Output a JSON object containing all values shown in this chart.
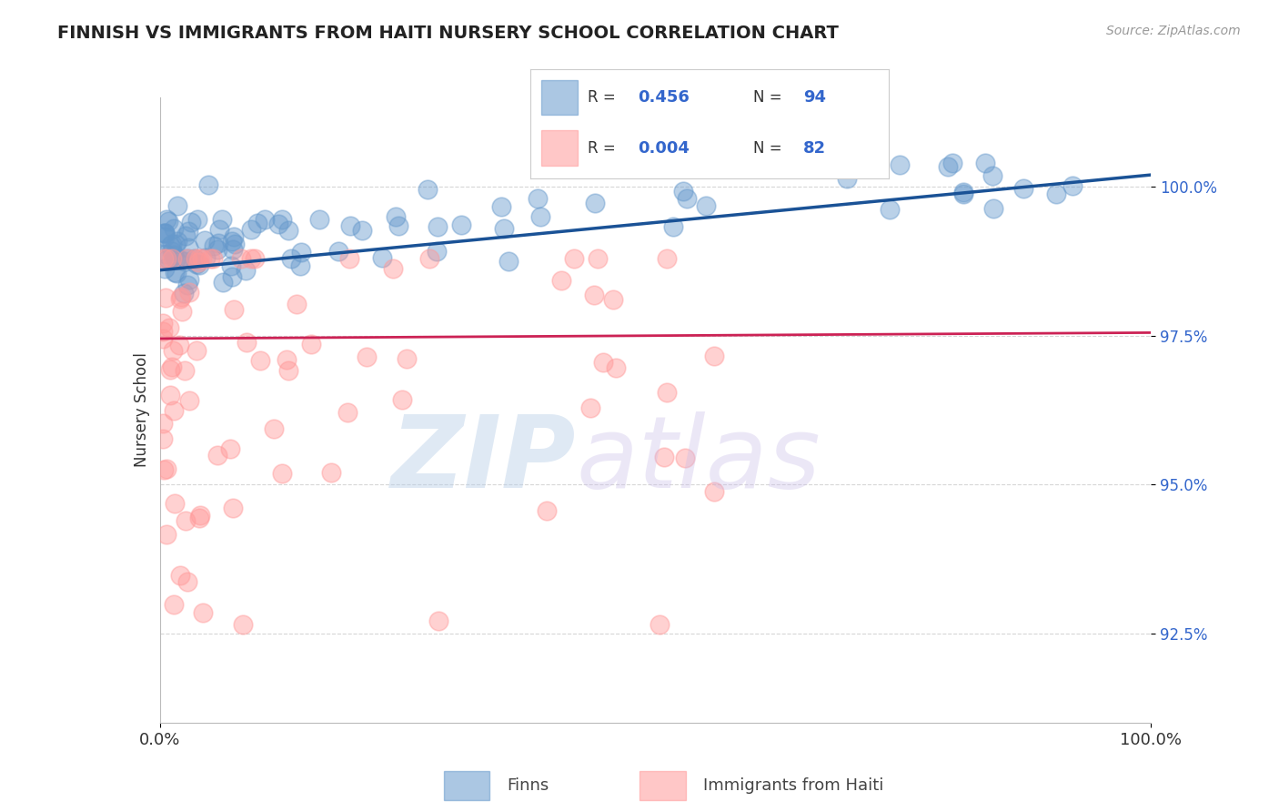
{
  "title": "FINNISH VS IMMIGRANTS FROM HAITI NURSERY SCHOOL CORRELATION CHART",
  "source_text": "Source: ZipAtlas.com",
  "ylabel": "Nursery School",
  "xmin": 0.0,
  "xmax": 100.0,
  "ymin": 91.0,
  "ymax": 101.5,
  "yticks": [
    92.5,
    95.0,
    97.5,
    100.0
  ],
  "ytick_labels": [
    "92.5%",
    "95.0%",
    "97.5%",
    "100.0%"
  ],
  "blue_color": "#6699cc",
  "pink_color": "#ff9999",
  "blue_line_color": "#1a5296",
  "pink_line_color": "#cc2255",
  "legend_R_blue": "0.456",
  "legend_N_blue": "94",
  "legend_R_pink": "0.004",
  "legend_N_pink": "82",
  "label_finns": "Finns",
  "label_haiti": "Immigrants from Haiti",
  "blue_trend_x0": 0,
  "blue_trend_x1": 100,
  "blue_trend_y0": 98.6,
  "blue_trend_y1": 100.2,
  "pink_trend_y0": 97.45,
  "pink_trend_y1": 97.55
}
